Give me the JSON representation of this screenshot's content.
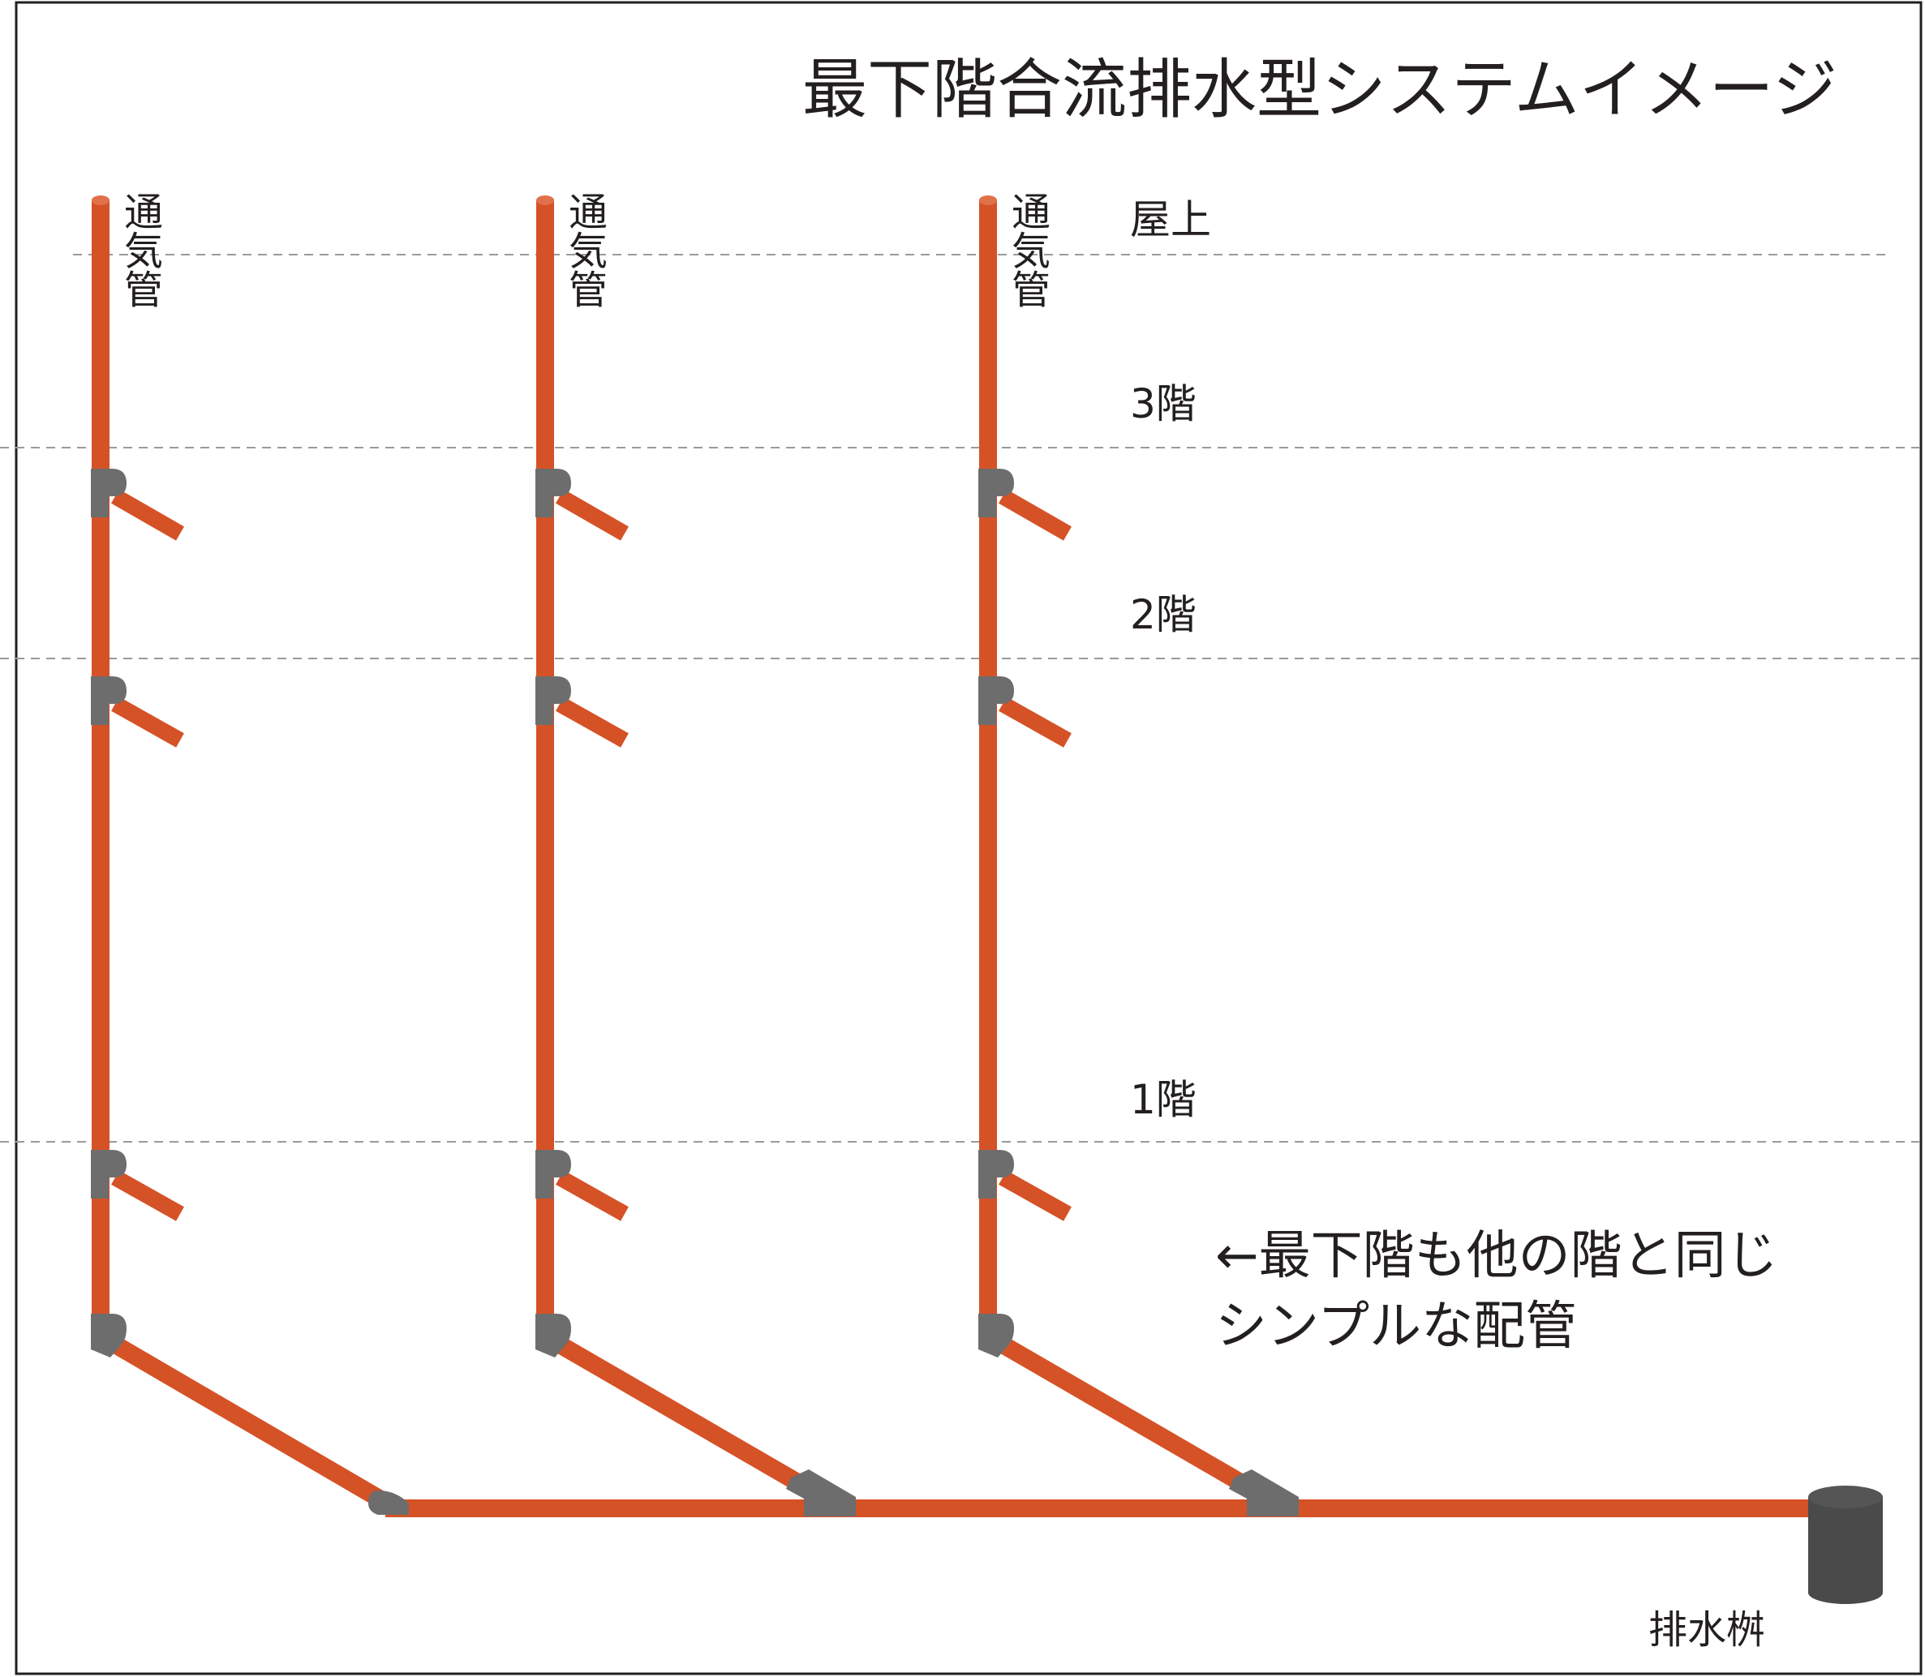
{
  "title": "最下階合流排水型システムイメージ",
  "floor_labels": {
    "roof": "屋上",
    "f3": "3階",
    "f2": "2階",
    "f1": "1階"
  },
  "vent_label": "通気管",
  "note": {
    "line1": "←最下階も他の階と同じ",
    "line2": "シンプルな配管"
  },
  "catch_basin_label": "排水桝",
  "colors": {
    "pipe": "#d55227",
    "fitting": "#6d6d6d",
    "basin": "#4a4a4a",
    "dashed_line": "#9a9a9a",
    "frame": "#231f20",
    "text": "#231f20"
  }
}
